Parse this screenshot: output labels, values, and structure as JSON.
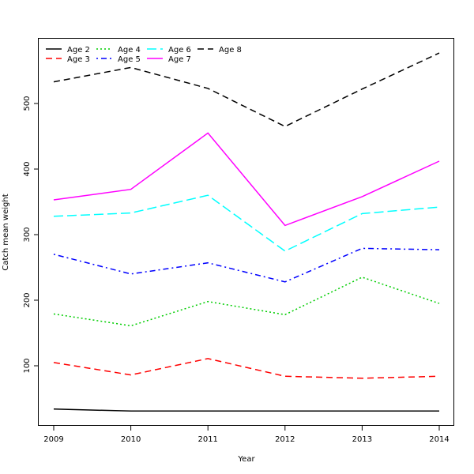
{
  "chart_data": {
    "type": "line",
    "title": "",
    "xlabel": "Year",
    "ylabel": "Catch mean weight",
    "x": [
      2009,
      2010,
      2011,
      2012,
      2013,
      2014
    ],
    "x_ticks": [
      "2009",
      "2010",
      "2011",
      "2012",
      "2013",
      "2014"
    ],
    "y_ticks": [
      "100",
      "200",
      "300",
      "400",
      "500"
    ],
    "xlim": [
      2009,
      2014
    ],
    "ylim": [
      20,
      590
    ],
    "grid": false,
    "legend_position": "top-left",
    "series": [
      {
        "name": "Age 2",
        "color": "#000000",
        "dash": "solid",
        "values": [
          34,
          31,
          31,
          31,
          31,
          31
        ]
      },
      {
        "name": "Age 3",
        "color": "#ff0000",
        "dash": "dashed",
        "values": [
          105,
          86,
          111,
          84,
          81,
          84
        ]
      },
      {
        "name": "Age 4",
        "color": "#00cd00",
        "dash": "dotted",
        "values": [
          179,
          161,
          198,
          178,
          235,
          195
        ]
      },
      {
        "name": "Age 5",
        "color": "#0000ff",
        "dash": "dotdash",
        "values": [
          270,
          240,
          257,
          228,
          279,
          277
        ]
      },
      {
        "name": "Age 6",
        "color": "#00ffff",
        "dash": "longdash",
        "values": [
          328,
          333,
          360,
          275,
          332,
          342
        ]
      },
      {
        "name": "Age 7",
        "color": "#ff00ff",
        "dash": "solid",
        "values": [
          353,
          369,
          455,
          314,
          358,
          412
        ]
      },
      {
        "name": "Age 8",
        "color": "#000000",
        "dash": "dashed",
        "values": [
          533,
          555,
          523,
          465,
          522,
          577
        ]
      }
    ]
  }
}
